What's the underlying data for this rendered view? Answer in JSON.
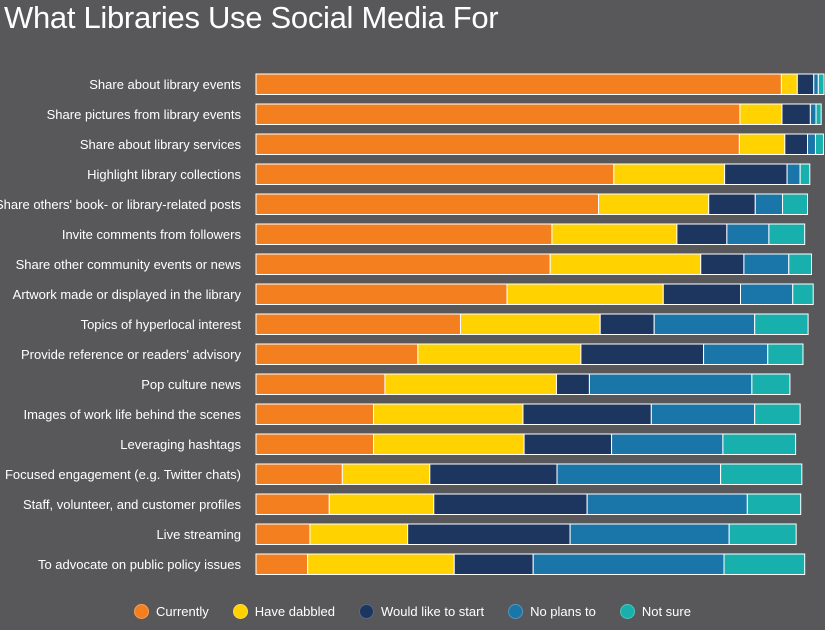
{
  "chart_data": {
    "type": "bar",
    "orientation": "horizontal",
    "stacked": true,
    "title": "What Libraries Use Social Media For",
    "xlabel": "",
    "ylabel": "",
    "xlim": [
      0,
      100
    ],
    "grid": false,
    "legend_position": "bottom",
    "categories": [
      "Share about library events",
      "Share pictures from library events",
      "Share about library services",
      "Highlight library collections",
      "Share others' book- or library-related posts",
      "Invite comments from followers",
      "Share other community events or news",
      "Artwork made or displayed in the library",
      "Topics of hyperlocal interest",
      "Provide reference or readers' advisory",
      "Pop culture news",
      "Images of work life behind the scenes",
      "Leveraging hashtags",
      "Focused engagement (e.g. Twitter chats)",
      "Staff, volunteer, and customer profiles",
      "Live streaming",
      "To advocate on public policy issues"
    ],
    "series": [
      {
        "name": "Currently",
        "color": "#f47f1f",
        "values": [
          92.5,
          85.2,
          85.1,
          63.0,
          60.3,
          52.1,
          51.8,
          44.2,
          36.0,
          28.5,
          22.7,
          20.7,
          20.7,
          15.2,
          12.9,
          9.5,
          9.1
        ]
      },
      {
        "name": "Have dabbled",
        "color": "#ffd200",
        "values": [
          2.8,
          7.4,
          8.0,
          19.5,
          19.4,
          22.0,
          26.5,
          27.5,
          24.6,
          28.7,
          30.2,
          26.3,
          26.5,
          15.4,
          18.4,
          17.2,
          25.8
        ]
      },
      {
        "name": "Would like to start",
        "color": "#1d3660",
        "values": [
          2.9,
          5.0,
          4.0,
          11.0,
          8.2,
          8.8,
          7.6,
          13.6,
          9.5,
          21.6,
          5.8,
          22.6,
          15.4,
          22.4,
          27.0,
          28.6,
          13.9
        ]
      },
      {
        "name": "No plans to",
        "color": "#1a75a8",
        "values": [
          0.8,
          1.0,
          1.4,
          2.3,
          4.8,
          7.4,
          7.9,
          9.2,
          17.7,
          11.3,
          28.6,
          18.2,
          19.6,
          28.8,
          28.2,
          28.0,
          33.6
        ]
      },
      {
        "name": "Not sure",
        "color": "#18b0ad",
        "values": [
          1.0,
          0.9,
          1.4,
          1.7,
          4.4,
          6.3,
          4.0,
          3.6,
          9.4,
          6.2,
          6.7,
          8.0,
          12.8,
          14.3,
          9.4,
          11.8,
          14.2
        ]
      }
    ]
  }
}
